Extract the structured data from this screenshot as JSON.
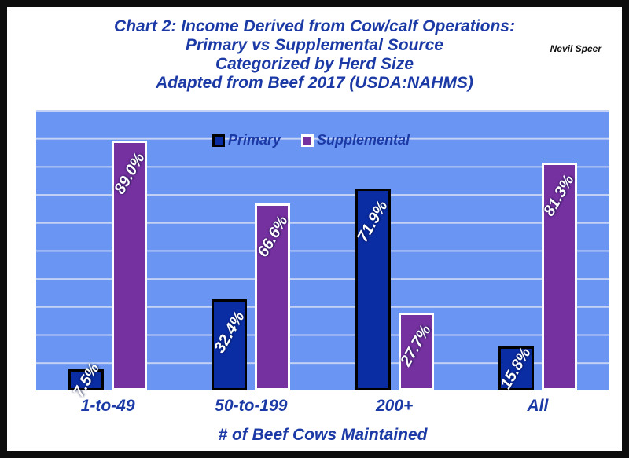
{
  "header": {
    "title_lines": [
      "Chart 2: Income Derived from Cow/calf Operations:",
      "Primary vs Supplemental Source",
      "Categorized by Herd Size",
      "Adapted from Beef 2017 (USDA:NAHMS)"
    ],
    "credit": "Nevil Speer"
  },
  "chart_data": {
    "type": "bar",
    "categories": [
      "1-to-49",
      "50-to-199",
      "200+",
      "All"
    ],
    "series": [
      {
        "name": "Primary",
        "values": [
          7.5,
          32.4,
          71.9,
          15.8
        ],
        "labels": [
          "7.5%",
          "32.4%",
          "71.9%",
          "15.8%"
        ],
        "fill": "#0b2da4",
        "border": "#000000"
      },
      {
        "name": "Supplemental",
        "values": [
          89.0,
          66.6,
          27.7,
          81.3
        ],
        "labels": [
          "89.0%",
          "66.6%",
          "27.7%",
          "81.3%"
        ],
        "fill": "#7631a0",
        "border": "#ffffff"
      }
    ],
    "xlabel": "# of Beef Cows Maintained",
    "ylim": [
      0,
      100
    ],
    "gridline_interval": 10,
    "grid_on": true,
    "legend_position": "top-center",
    "plot_bg": "#6b95f2",
    "grid_color": "#c3d2f5",
    "value_label_color": "#ffffff"
  }
}
